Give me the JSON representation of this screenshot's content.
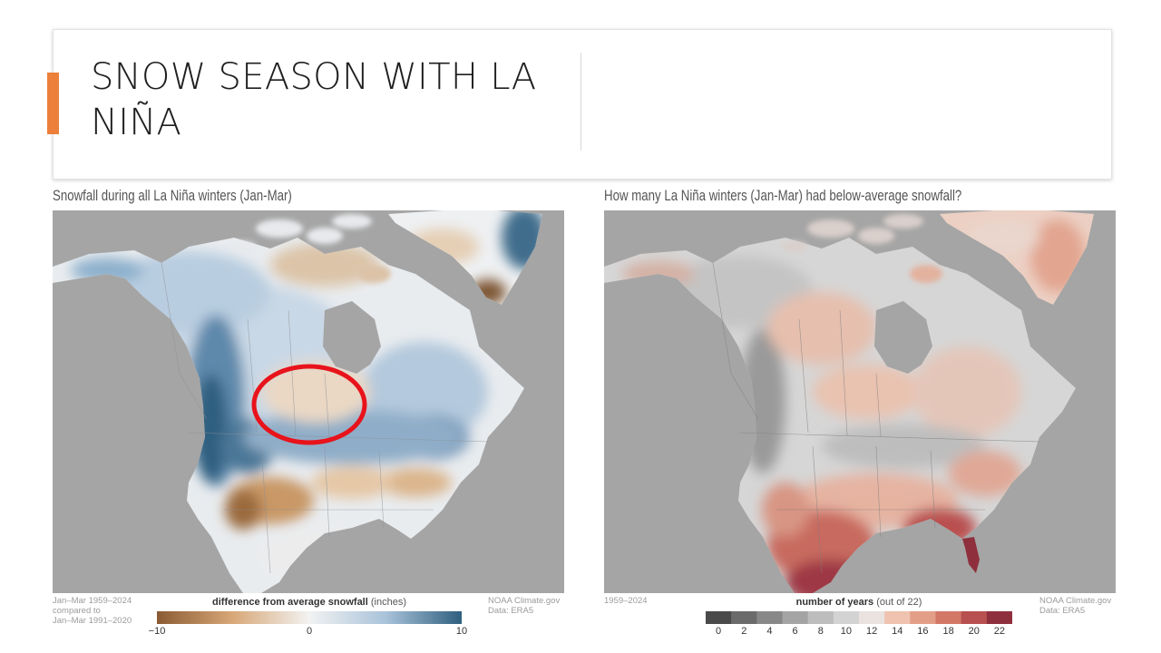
{
  "slide": {
    "title": "SNOW SEASON WITH LA NIÑA",
    "accent_color": "#ec7f3a"
  },
  "left_map": {
    "heading": "Snowfall during all La Niña winters (Jan-Mar)",
    "note_left": [
      "Jan–Mar 1959–2024",
      "compared to",
      "Jan–Mar 1991–2020"
    ],
    "legend_title": "difference from average snowfall",
    "legend_unit": "(inches)",
    "ticks": [
      "−10",
      "0",
      "10"
    ],
    "tick_values": [
      -10,
      0,
      10
    ],
    "range": [
      -10,
      10
    ],
    "gradient_colors": [
      "#8a5a33",
      "#d8a878",
      "#f2f2f2",
      "#a9c3da",
      "#2f5f7f"
    ],
    "note_right": [
      "NOAA Climate.gov",
      "Data: ERA5"
    ],
    "annotation": {
      "shape": "circle-outline",
      "color": "#e8131b"
    }
  },
  "right_map": {
    "heading": "How many La Niña winters (Jan-Mar) had below-average snowfall?",
    "note_left": [
      "1959–2024"
    ],
    "legend_title": "number of years",
    "legend_unit": "(out of 22)",
    "ticks": [
      "0",
      "2",
      "4",
      "6",
      "8",
      "10",
      "12",
      "14",
      "16",
      "18",
      "20",
      "22"
    ],
    "tick_values": [
      0,
      2,
      4,
      6,
      8,
      10,
      12,
      14,
      16,
      18,
      20,
      22
    ],
    "range": [
      0,
      22
    ],
    "bin_colors": [
      "#4a4a4a",
      "#6b6b6b",
      "#888888",
      "#a4a4a4",
      "#bdbdbd",
      "#d3d3d3",
      "#e9e2df",
      "#efc3b0",
      "#e39e88",
      "#d37767",
      "#b7504f",
      "#8f2f3d"
    ],
    "note_right": [
      "NOAA Climate.gov",
      "Data: ERA5"
    ]
  }
}
